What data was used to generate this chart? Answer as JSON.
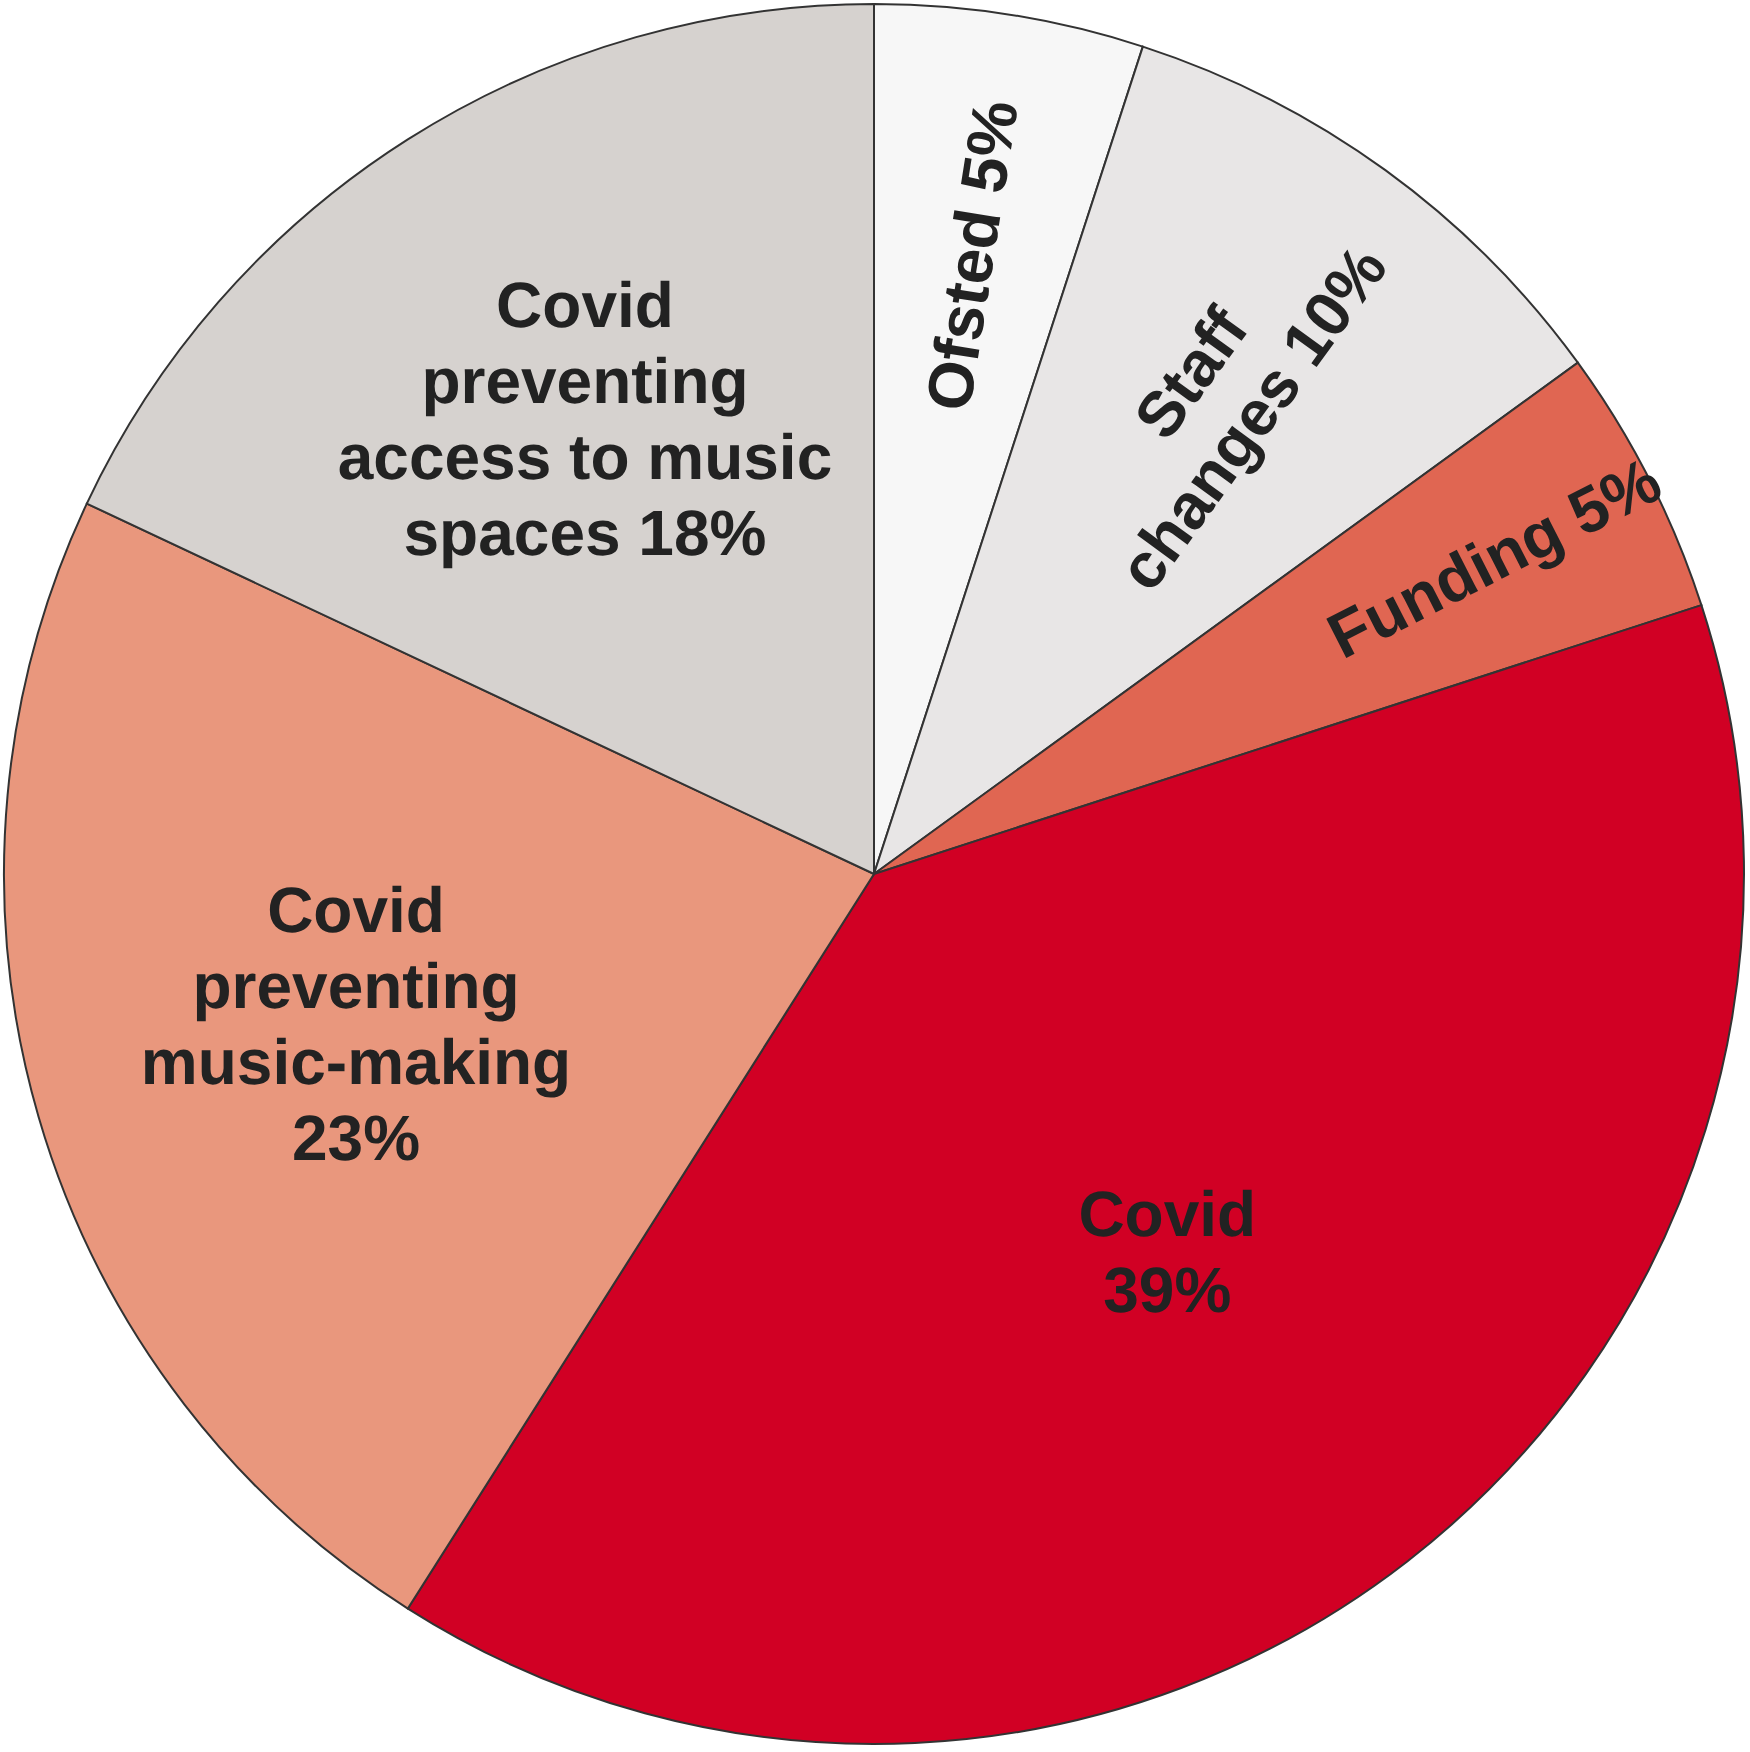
{
  "chart_data": {
    "type": "pie",
    "categories": [
      "Ofsted",
      "Staff changes",
      "Funding",
      "Covid",
      "Covid preventing music-making",
      "Covid preventing access to music spaces"
    ],
    "values": [
      5,
      10,
      5,
      39,
      23,
      18
    ],
    "value_labels": [
      "5%",
      "10%",
      "5%",
      "39%",
      "23%",
      "18%"
    ],
    "colors": [
      "#f7f7f7",
      "#e8e6e6",
      "#e06652",
      "#d10024",
      "#e9977d",
      "#d6d2cf"
    ]
  }
}
